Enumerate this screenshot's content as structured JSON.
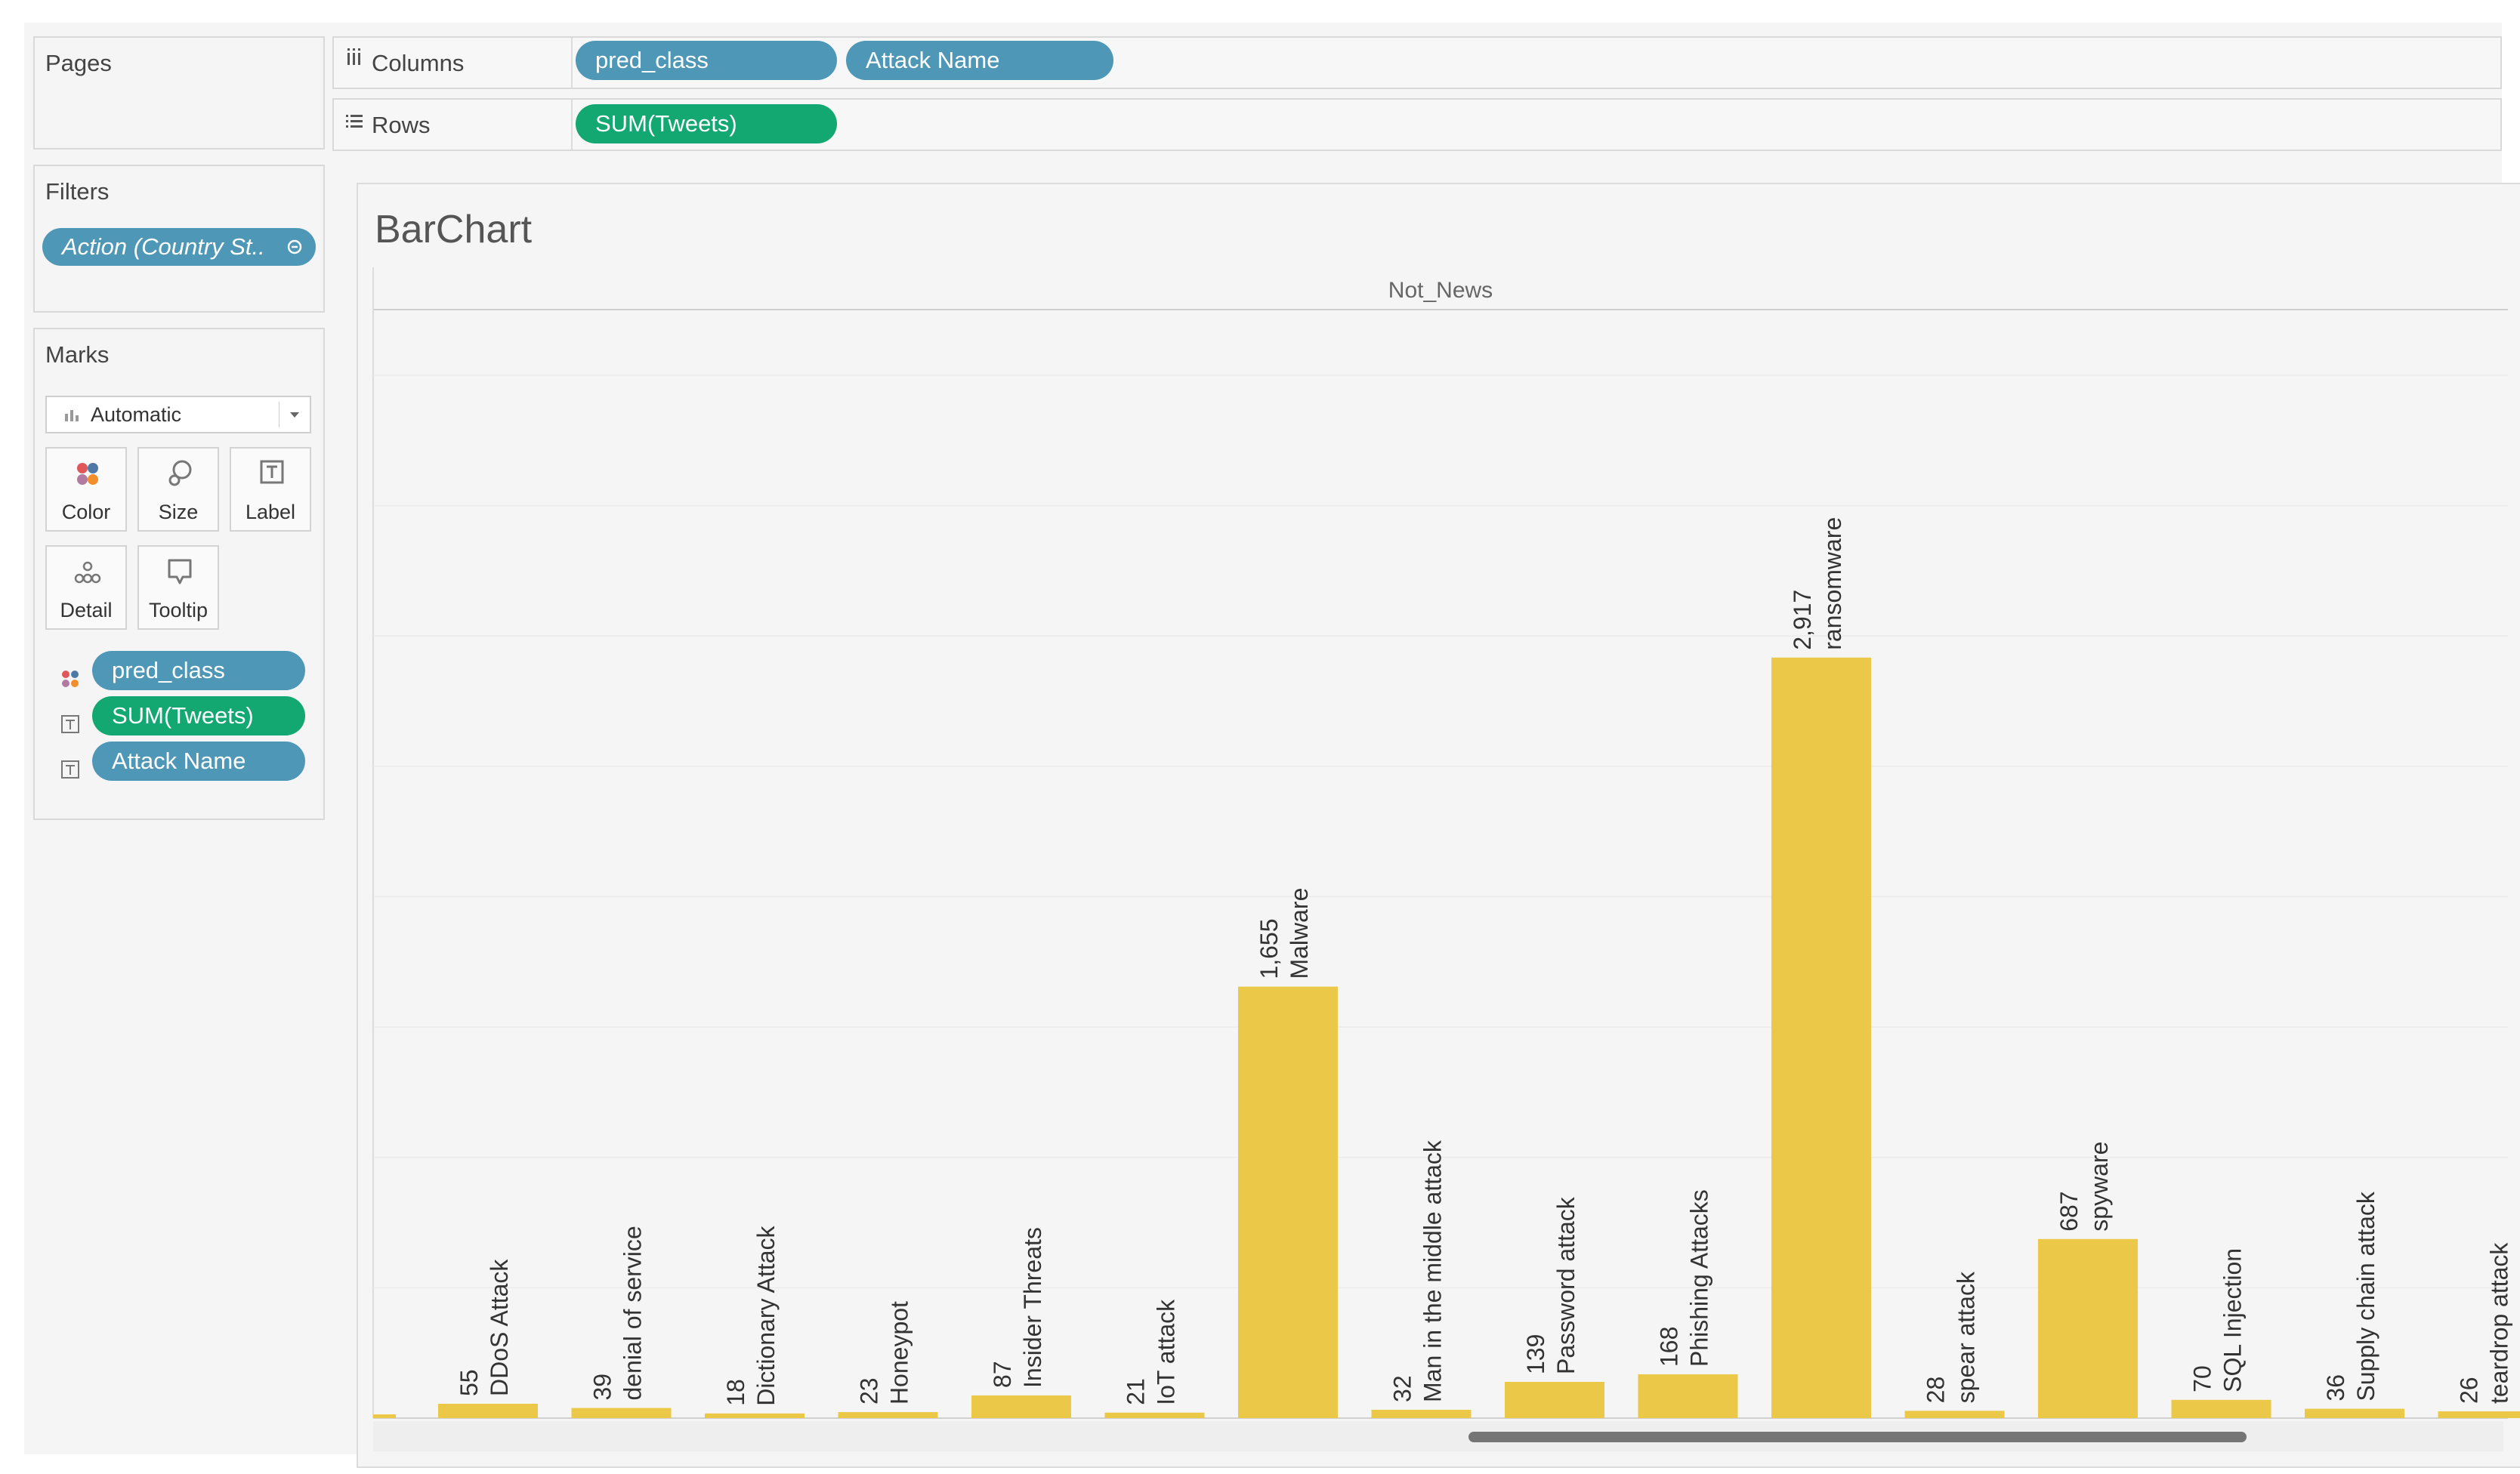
{
  "pages": {
    "title": "Pages"
  },
  "filters": {
    "title": "Filters",
    "items": [
      {
        "label": "Action (Country St.."
      }
    ]
  },
  "marks": {
    "title": "Marks",
    "type_label": "Automatic",
    "buttons": {
      "color": "Color",
      "size": "Size",
      "label": "Label",
      "detail": "Detail",
      "tooltip": "Tooltip"
    },
    "fields": [
      {
        "label": "pred_class",
        "icon": "color-dots-icon"
      },
      {
        "label": "SUM(Tweets)",
        "icon": "text-label-icon"
      },
      {
        "label": "Attack Name",
        "icon": "text-label-icon"
      }
    ]
  },
  "columns": {
    "label": "Columns",
    "pills": [
      "pred_class",
      "Attack Name"
    ]
  },
  "rows": {
    "label": "Rows",
    "pills": [
      "SUM(Tweets)"
    ]
  },
  "sheet_title": "BarChart",
  "colors": {
    "bar": "#ebc847",
    "pill_blue": "#4e97b6",
    "pill_green": "#13a872"
  },
  "chart_data": {
    "type": "bar",
    "title": "BarChart",
    "panel_header": "Not_News",
    "categories": [
      "DDoS Attack",
      "denial of service",
      "Dictionary Attack",
      "Honeypot",
      "Insider Threats",
      "IoT attack",
      "Malware",
      "Man in the middle attack",
      "Password attack",
      "Phishing Attacks",
      "ransomware",
      "spear attack",
      "spyware",
      "SQL Injection",
      "Supply chain attack",
      "teardrop attack"
    ],
    "values": [
      55,
      39,
      18,
      23,
      87,
      21,
      1655,
      32,
      139,
      168,
      2917,
      28,
      687,
      70,
      36,
      26
    ],
    "value_labels": [
      "55",
      "39",
      "18",
      "23",
      "87",
      "21",
      "1,655",
      "32",
      "139",
      "168",
      "2,917",
      "28",
      "687",
      "70",
      "36",
      "26"
    ],
    "ylim": [
      0,
      4240
    ],
    "xlabel": "",
    "ylabel": "",
    "grid": true
  }
}
